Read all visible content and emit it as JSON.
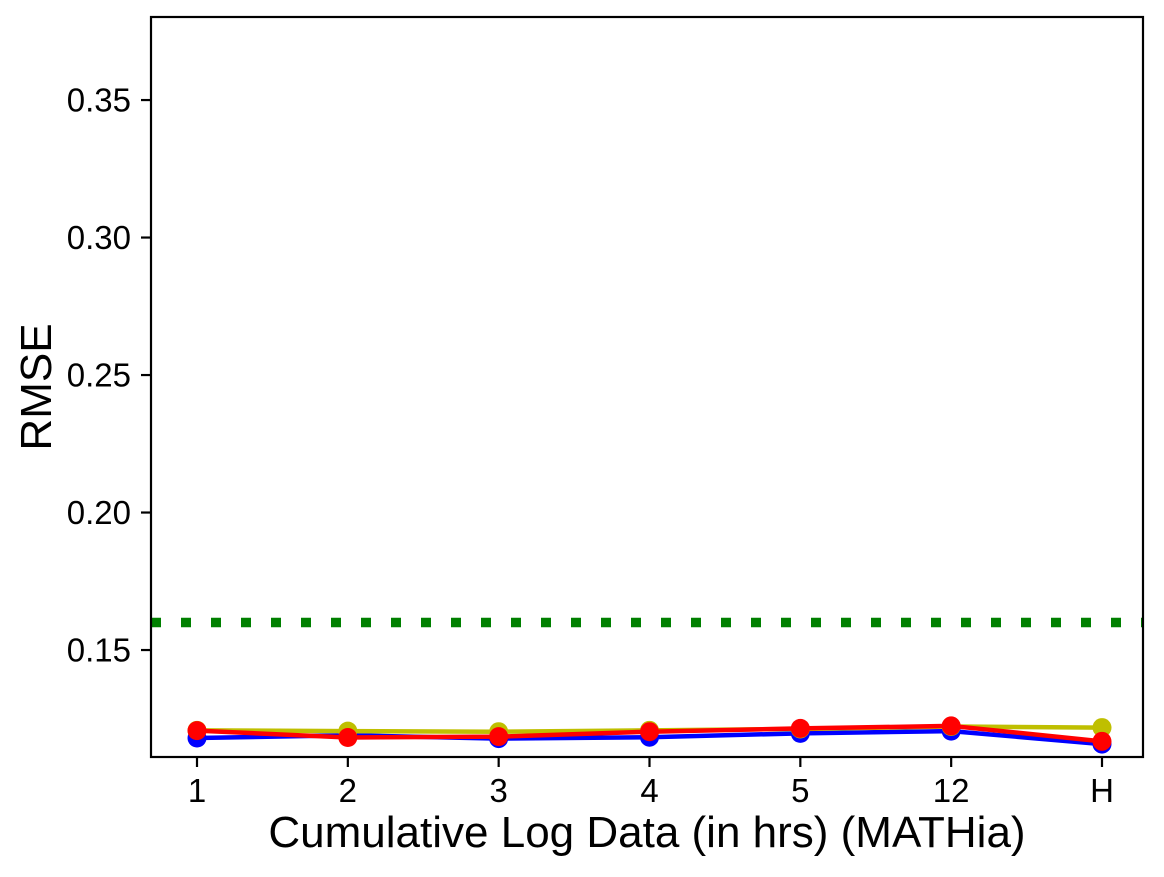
{
  "chart_data": {
    "type": "line",
    "title": "",
    "xlabel": "Cumulative Log Data (in hrs) (MATHia)",
    "ylabel": "RMSE",
    "categories": [
      "1",
      "2",
      "3",
      "4",
      "5",
      "12",
      "H"
    ],
    "series": [
      {
        "name": "blue-line",
        "color": "#0000ff",
        "marker": "circle",
        "values": [
          0.118,
          0.119,
          0.1178,
          0.1183,
          0.1197,
          0.1205,
          0.1158
        ]
      },
      {
        "name": "yellow-line",
        "color": "#bfbf00",
        "marker": "circle",
        "values": [
          0.1208,
          0.1205,
          0.1203,
          0.1208,
          0.1213,
          0.1222,
          0.1218
        ]
      },
      {
        "name": "red-line",
        "color": "#ff0000",
        "marker": "circle",
        "values": [
          0.1207,
          0.1182,
          0.1185,
          0.1203,
          0.1215,
          0.1224,
          0.1168
        ]
      }
    ],
    "baseline": {
      "value": 0.16,
      "color": "#008000",
      "style": "dotted"
    },
    "yticks": [
      0.15,
      0.2,
      0.25,
      0.3,
      0.35
    ],
    "ytick_labels": [
      "0.15",
      "0.20",
      "0.25",
      "0.30",
      "0.35"
    ],
    "ylim": [
      0.1111,
      0.3802
    ],
    "grid": false,
    "legend": null,
    "axis_color": "#000000"
  }
}
